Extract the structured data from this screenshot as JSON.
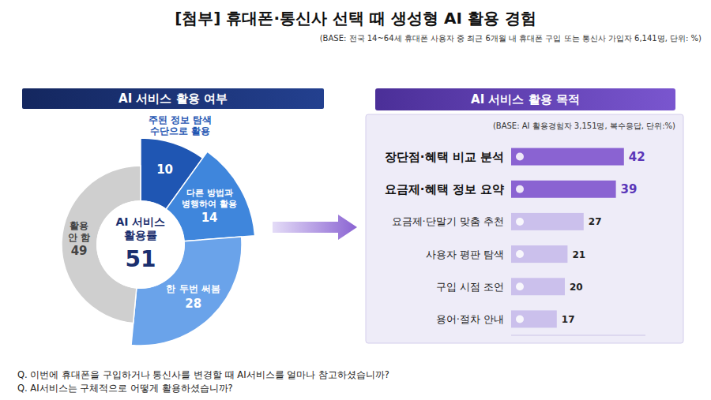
{
  "title": "[첨부] 휴대폰·통신사 선택 때 생성형 AI 활용 경험",
  "subtitle": "(BASE: 전국 14~64세 휴대폰 사용자 중 최근 6개월 내 휴대폰 구입 또는 통신사 가입자 6,141명, 단위: %)",
  "chart_data": [
    {
      "type": "pie",
      "title": "AI 서비스 활용 여부",
      "categories": [
        "주된 정보 탐색 수단으로 활용",
        "다른 방법과 병행하여 활용",
        "한 두번 써봄",
        "활용 안 함"
      ],
      "values": [
        10,
        14,
        28,
        49
      ],
      "colors": [
        "#1f56b3",
        "#3f86dc",
        "#6aa3ea",
        "#cfcfcf"
      ],
      "center_label": "AI 서비스 활용률",
      "center_value": 51,
      "data_labels": true
    },
    {
      "type": "bar",
      "orientation": "horizontal",
      "title": "AI 서비스 활용 목적",
      "subtitle": "(BASE: AI 활용경험자 3,151명, 복수응답, 단위:%)",
      "categories": [
        "장단점·혜택 비교 분석",
        "요금제·혜택 정보 요약",
        "요금제·단말기 맞춤 추천",
        "사용자 평판 탐색",
        "구입 시점 조언",
        "용어·절차 안내"
      ],
      "values": [
        42,
        39,
        27,
        21,
        20,
        17
      ],
      "colors": [
        "#8a63d2",
        "#8a63d2",
        "#cbc0ec",
        "#cbc0ec",
        "#cbc0ec",
        "#cbc0ec"
      ],
      "xlim": [
        0,
        50
      ],
      "xticks": [],
      "tick_labels": "y",
      "data_labels": true
    }
  ],
  "footnotes": [
    "Q. 이번에 휴대폰을 구입하거나 통신사를 변경할 때 AI서비스를 얼마나 참고하셨습니까?",
    "Q. AI서비스는 구체적으로 어떻게 활용하셨습니까?"
  ]
}
